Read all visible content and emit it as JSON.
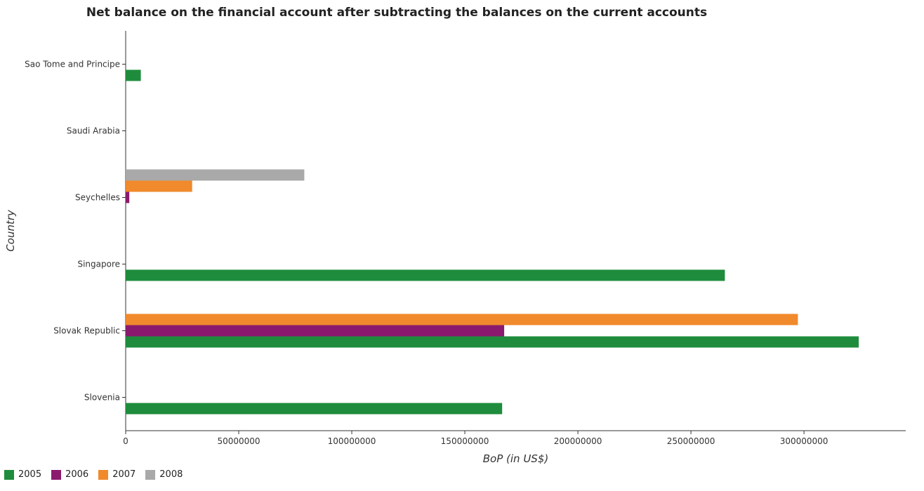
{
  "chart_data": {
    "type": "bar",
    "orientation": "horizontal",
    "title": "Net balance on the financial account after subtracting the balances on the current accounts",
    "xlabel": "BoP (in US$)",
    "ylabel": "Country",
    "xlim": [
      0,
      345000000
    ],
    "xticks": [
      0,
      50000000,
      100000000,
      150000000,
      200000000,
      250000000,
      300000000
    ],
    "xtick_labels": [
      "0",
      "50000000",
      "100000000",
      "150000000",
      "200000000",
      "250000000",
      "300000000"
    ],
    "categories": [
      "Sao Tome and Principe",
      "Saudi Arabia",
      "Seychelles",
      "Singapore",
      "Slovak Republic",
      "Slovenia"
    ],
    "series": [
      {
        "name": "2005",
        "color": "#1e8c3c",
        "values": [
          6700000,
          0,
          0,
          265000000,
          324200000,
          166500000
        ]
      },
      {
        "name": "2006",
        "color": "#8b1a6e",
        "values": [
          0,
          0,
          1600000,
          0,
          167400000,
          0
        ]
      },
      {
        "name": "2007",
        "color": "#f08a2c",
        "values": [
          0,
          0,
          29400000,
          0,
          297300000,
          0
        ]
      },
      {
        "name": "2008",
        "color": "#a9a9a9",
        "values": [
          0,
          0,
          79000000,
          0,
          0,
          0
        ]
      }
    ],
    "legend_position": "bottom-left",
    "grid": false
  }
}
